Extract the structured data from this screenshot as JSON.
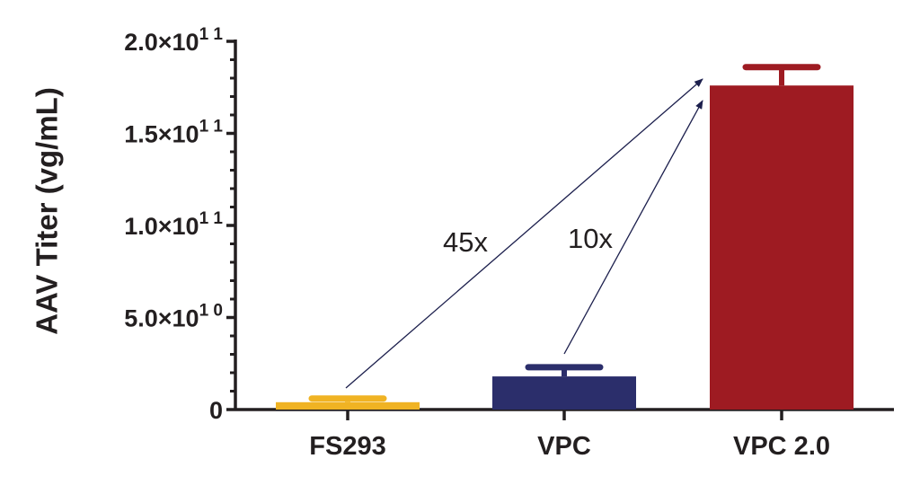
{
  "chart_data": {
    "type": "bar",
    "ylabel": "AAV Titer (vg/mL)",
    "xlabel": "",
    "categories": [
      "FS293",
      "VPC",
      "VPC 2.0"
    ],
    "values": [
      4000000000,
      18000000000,
      176000000000
    ],
    "error_upper": [
      6000000000,
      23000000000,
      186000000000
    ],
    "colors": [
      "#f0b323",
      "#2b2e6b",
      "#9e1b22"
    ],
    "ylim": [
      0,
      200000000000
    ],
    "yticks": [
      {
        "value": 0,
        "mantissa": "0",
        "exponent": ""
      },
      {
        "value": 50000000000,
        "mantissa": "5.0×10",
        "exponent": "1 0"
      },
      {
        "value": 100000000000,
        "mantissa": "1.0×10",
        "exponent": "1 1"
      },
      {
        "value": 150000000000,
        "mantissa": "1.5×10",
        "exponent": "1 1"
      },
      {
        "value": 200000000000,
        "mantissa": "2.0×10",
        "exponent": "1 1"
      }
    ],
    "minor_ticks_per_interval": 4,
    "grid": false,
    "legend": "none",
    "annotations": [
      {
        "text": "45x",
        "from_category": 0,
        "to_category": 2
      },
      {
        "text": "10x",
        "from_category": 1,
        "to_category": 2
      }
    ],
    "axis_color": "#231f20",
    "arrow_color": "#1c1f4d"
  }
}
